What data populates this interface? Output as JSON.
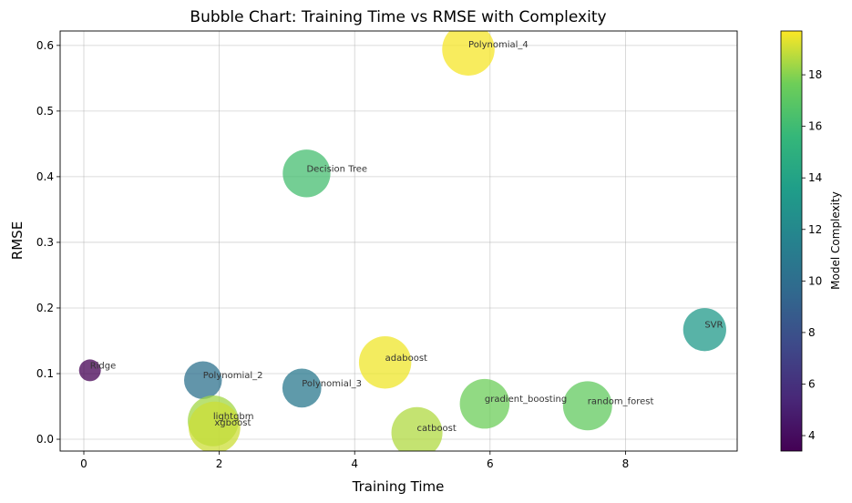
{
  "chart_data": {
    "type": "scatter",
    "title": "Bubble Chart: Training Time vs RMSE with Complexity",
    "xlabel": "Training Time",
    "ylabel": "RMSE",
    "xlim": [
      -0.35,
      9.65
    ],
    "ylim": [
      -0.018,
      0.622
    ],
    "xticks": [
      0,
      2,
      4,
      6,
      8
    ],
    "yticks": [
      0.0,
      0.1,
      0.2,
      0.3,
      0.4,
      0.5,
      0.6
    ],
    "grid": true,
    "colorbar": {
      "label": "Model Complexity",
      "range": [
        3.4,
        19.7
      ],
      "ticks": [
        4,
        6,
        8,
        10,
        12,
        14,
        16,
        18
      ],
      "colormap": "viridis"
    },
    "points": [
      {
        "label": "Ridge",
        "x": 0.09,
        "y": 0.105,
        "complexity": 3.4
      },
      {
        "label": "Polynomial_2",
        "x": 1.76,
        "y": 0.09,
        "complexity": 10.2
      },
      {
        "label": "Polynomial_3",
        "x": 3.22,
        "y": 0.078,
        "complexity": 10.8
      },
      {
        "label": "Polynomial_4",
        "x": 5.68,
        "y": 0.594,
        "complexity": 19.6
      },
      {
        "label": "Decision Tree",
        "x": 3.29,
        "y": 0.405,
        "complexity": 16.2
      },
      {
        "label": "SVR",
        "x": 9.17,
        "y": 0.167,
        "complexity": 13.2
      },
      {
        "label": "adaboost",
        "x": 4.45,
        "y": 0.117,
        "complexity": 19.5
      },
      {
        "label": "gradient_boosting",
        "x": 5.92,
        "y": 0.054,
        "complexity": 17.6
      },
      {
        "label": "random_forest",
        "x": 7.44,
        "y": 0.051,
        "complexity": 17.2
      },
      {
        "label": "catboost",
        "x": 4.92,
        "y": 0.01,
        "complexity": 18.6
      },
      {
        "label": "lightgbm",
        "x": 1.91,
        "y": 0.028,
        "complexity": 18.4
      },
      {
        "label": "xgboost",
        "x": 1.93,
        "y": 0.018,
        "complexity": 19.0
      }
    ]
  }
}
